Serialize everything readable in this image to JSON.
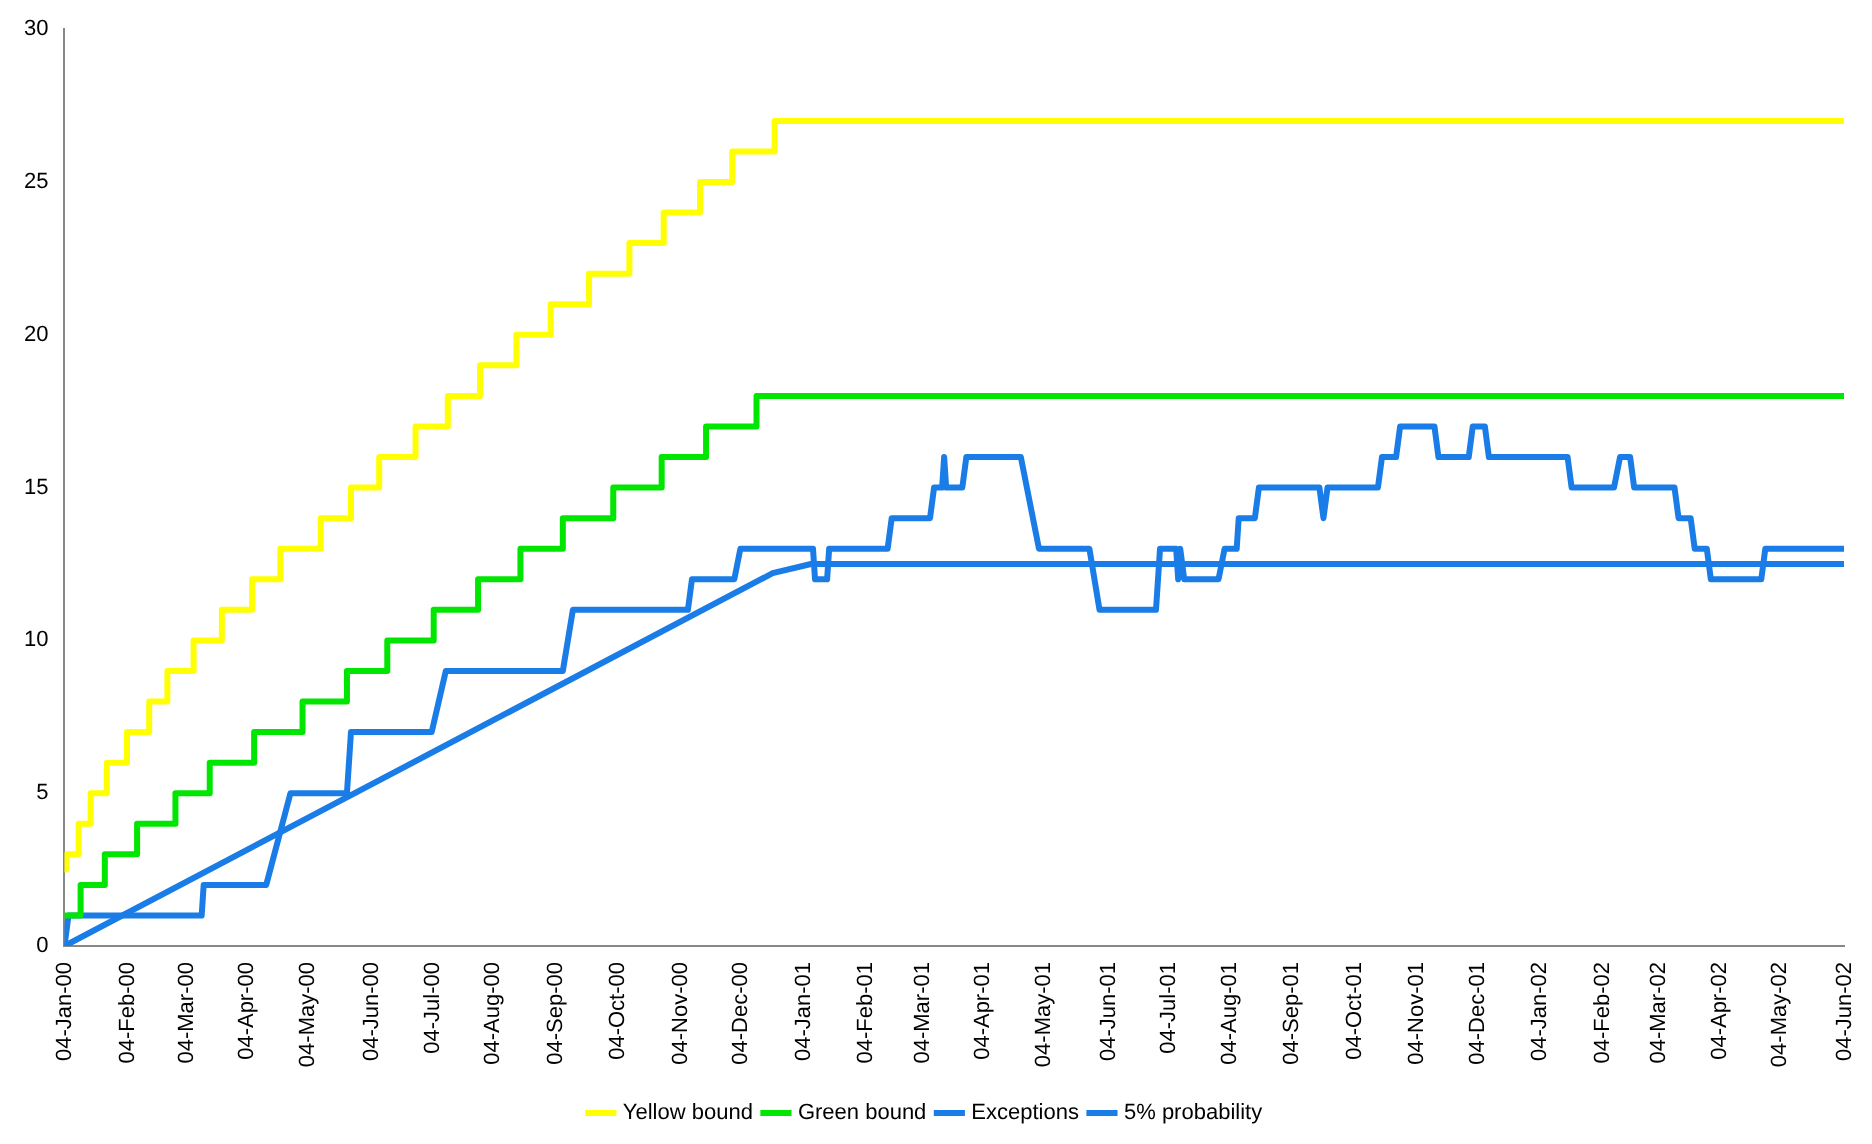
{
  "chart_data": {
    "type": "line",
    "legend": "bottom",
    "grid": false,
    "marker": "none",
    "line_style": "solid",
    "xlim": [
      "2000-01-04",
      "2002-06-04"
    ],
    "xticks": [
      {
        "value": "2000-01-04",
        "label": "04-Jan-00"
      },
      {
        "value": "2000-02-04",
        "label": "04-Feb-00"
      },
      {
        "value": "2000-03-04",
        "label": "04-Mar-00"
      },
      {
        "value": "2000-04-04",
        "label": "04-Apr-00"
      },
      {
        "value": "2000-05-04",
        "label": "04-May-00"
      },
      {
        "value": "2000-06-04",
        "label": "04-Jun-00"
      },
      {
        "value": "2000-07-04",
        "label": "04-Jul-00"
      },
      {
        "value": "2000-08-04",
        "label": "04-Aug-00"
      },
      {
        "value": "2000-09-04",
        "label": "04-Sep-00"
      },
      {
        "value": "2000-10-04",
        "label": "04-Oct-00"
      },
      {
        "value": "2000-11-04",
        "label": "04-Nov-00"
      },
      {
        "value": "2000-12-04",
        "label": "04-Dec-00"
      },
      {
        "value": "2001-01-04",
        "label": "04-Jan-01"
      },
      {
        "value": "2001-02-04",
        "label": "04-Feb-01"
      },
      {
        "value": "2001-03-04",
        "label": "04-Mar-01"
      },
      {
        "value": "2001-04-04",
        "label": "04-Apr-01"
      },
      {
        "value": "2001-05-04",
        "label": "04-May-01"
      },
      {
        "value": "2001-06-04",
        "label": "04-Jun-01"
      },
      {
        "value": "2001-07-04",
        "label": "04-Jul-01"
      },
      {
        "value": "2001-08-04",
        "label": "04-Aug-01"
      },
      {
        "value": "2001-09-04",
        "label": "04-Sep-01"
      },
      {
        "value": "2001-10-04",
        "label": "04-Oct-01"
      },
      {
        "value": "2001-11-04",
        "label": "04-Nov-01"
      },
      {
        "value": "2001-12-04",
        "label": "04-Dec-01"
      },
      {
        "value": "2002-01-04",
        "label": "04-Jan-02"
      },
      {
        "value": "2002-02-04",
        "label": "04-Feb-02"
      },
      {
        "value": "2002-03-04",
        "label": "04-Mar-02"
      },
      {
        "value": "2002-04-04",
        "label": "04-Apr-02"
      },
      {
        "value": "2002-05-04",
        "label": "04-May-02"
      },
      {
        "value": "2002-06-04",
        "label": "04-Jun-02"
      }
    ],
    "ylim": [
      0,
      30
    ],
    "yticks": [
      0,
      5,
      10,
      15,
      20,
      25,
      30
    ],
    "series": [
      {
        "name": "Yellow bound",
        "type": "step",
        "color": "#ffff00",
        "x": [
          "2000-01-04",
          "2000-01-05",
          "2000-01-11",
          "2000-01-17",
          "2000-01-25",
          "2000-02-04",
          "2000-02-15",
          "2000-02-24",
          "2000-03-08",
          "2000-03-22",
          "2000-04-06",
          "2000-04-20",
          "2000-05-10",
          "2000-05-25",
          "2000-06-08",
          "2000-06-26",
          "2000-07-12",
          "2000-07-28",
          "2000-08-15",
          "2000-09-01",
          "2000-09-20",
          "2000-10-10",
          "2000-10-27",
          "2000-11-14",
          "2000-11-30",
          "2000-12-21",
          "2002-06-04"
        ],
        "values": [
          2.5,
          3,
          4,
          5,
          6,
          7,
          8,
          9,
          10,
          11,
          12,
          13,
          14,
          15,
          16,
          17,
          18,
          19,
          20,
          21,
          22,
          23,
          24,
          25,
          26,
          27,
          27
        ]
      },
      {
        "name": "Green bound",
        "type": "step",
        "color": "#00e600",
        "x": [
          "2000-01-04",
          "2000-01-12",
          "2000-01-24",
          "2000-02-09",
          "2000-02-28",
          "2000-03-16",
          "2000-04-07",
          "2000-05-01",
          "2000-05-23",
          "2000-06-12",
          "2000-07-05",
          "2000-07-27",
          "2000-08-17",
          "2000-09-07",
          "2000-10-02",
          "2000-10-26",
          "2000-11-17",
          "2000-12-12",
          "2002-06-04"
        ],
        "values": [
          1,
          2,
          3,
          4,
          5,
          6,
          7,
          8,
          9,
          10,
          11,
          12,
          13,
          14,
          15,
          16,
          17,
          18,
          18
        ]
      },
      {
        "name": "Exceptions",
        "type": "line",
        "color": "#1a7ce6",
        "x": [
          "2000-01-04",
          "2000-01-06",
          "2000-03-12",
          "2000-03-13",
          "2000-04-13",
          "2000-04-25",
          "2000-05-23",
          "2000-05-25",
          "2000-07-04",
          "2000-07-11",
          "2000-09-07",
          "2000-09-12",
          "2000-11-08",
          "2000-11-10",
          "2000-12-01",
          "2000-12-04",
          "2001-01-09",
          "2001-01-10",
          "2001-01-16",
          "2001-01-17",
          "2001-02-15",
          "2001-02-17",
          "2001-03-08",
          "2001-03-10",
          "2001-03-14",
          "2001-03-15",
          "2001-03-16",
          "2001-03-24",
          "2001-03-26",
          "2001-04-22",
          "2001-05-01",
          "2001-05-26",
          "2001-05-31",
          "2001-06-28",
          "2001-06-30",
          "2001-07-08",
          "2001-07-09",
          "2001-07-10",
          "2001-07-12",
          "2001-07-29",
          "2001-08-01",
          "2001-08-07",
          "2001-08-08",
          "2001-08-16",
          "2001-08-18",
          "2001-09-17",
          "2001-09-19",
          "2001-09-21",
          "2001-10-16",
          "2001-10-18",
          "2001-10-25",
          "2001-10-27",
          "2001-11-13",
          "2001-11-15",
          "2001-11-30",
          "2001-12-02",
          "2001-12-08",
          "2001-12-10",
          "2002-01-18",
          "2002-01-20",
          "2002-02-10",
          "2002-02-13",
          "2002-02-18",
          "2002-02-20",
          "2002-03-12",
          "2002-03-14",
          "2002-03-20",
          "2002-03-22",
          "2002-03-28",
          "2002-03-30",
          "2002-04-24",
          "2002-04-26",
          "2002-06-04"
        ],
        "values": [
          0,
          1,
          1,
          2,
          2,
          5,
          5,
          7,
          7,
          9,
          9,
          11,
          11,
          12,
          12,
          13,
          13,
          12,
          12,
          13,
          13,
          14,
          14,
          15,
          15,
          16,
          15,
          15,
          16,
          16,
          13,
          13,
          11,
          11,
          13,
          13,
          12,
          13,
          12,
          12,
          13,
          13,
          14,
          14,
          15,
          15,
          14,
          15,
          15,
          16,
          16,
          17,
          17,
          16,
          16,
          17,
          17,
          16,
          16,
          15,
          15,
          16,
          16,
          15,
          15,
          14,
          14,
          13,
          13,
          12,
          12,
          13,
          13
        ]
      },
      {
        "name": "5% probability",
        "type": "line",
        "color": "#1a7ce6",
        "x": [
          "2000-01-04",
          "2000-12-20",
          "2001-01-08",
          "2002-06-04"
        ],
        "values": [
          0,
          12.2,
          12.5,
          12.5
        ]
      }
    ]
  }
}
